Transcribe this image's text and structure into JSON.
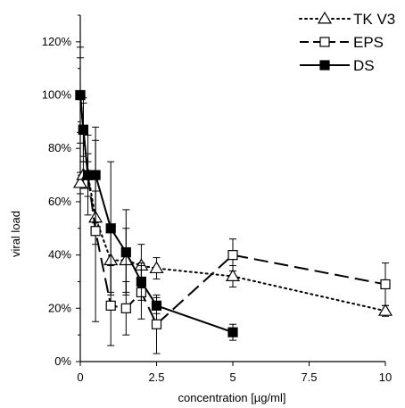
{
  "chart_data": {
    "type": "line",
    "title": "",
    "xlabel": "concentration [µg/ml]",
    "ylabel": "viral load",
    "xlim": [
      0,
      10
    ],
    "ylim": [
      0,
      130
    ],
    "x_ticks": [
      0,
      2.5,
      5,
      7.5,
      10
    ],
    "x_tick_labels": [
      "0",
      "2.5",
      "5",
      "7.5",
      "10"
    ],
    "y_ticks": [
      0,
      20,
      40,
      60,
      80,
      100,
      120
    ],
    "y_tick_labels": [
      "0%",
      "20%",
      "40%",
      "60%",
      "80%",
      "100%",
      "120%"
    ],
    "grid": false,
    "legend_position": "top-right",
    "series": [
      {
        "name": "TK V3",
        "marker": "triangle-open",
        "line": "dotted",
        "x": [
          0,
          0.1,
          0.25,
          0.5,
          1,
          1.5,
          2,
          2.5,
          5,
          10
        ],
        "y": [
          67,
          70,
          70,
          54,
          38,
          38,
          36,
          35,
          32,
          19
        ],
        "err": [
          4,
          5,
          5,
          10,
          12,
          12,
          8,
          4,
          4,
          2
        ]
      },
      {
        "name": "EPS",
        "marker": "square-open",
        "line": "dashed",
        "x": [
          0,
          0.1,
          0.25,
          0.5,
          1,
          1.5,
          2,
          2.5,
          5,
          10
        ],
        "y": [
          100,
          87,
          70,
          49,
          21,
          20,
          26,
          14,
          40,
          29
        ],
        "err": [
          14,
          10,
          8,
          34,
          15,
          10,
          10,
          11,
          6,
          8
        ]
      },
      {
        "name": "DS",
        "marker": "square-filled",
        "line": "solid",
        "x": [
          0,
          0.1,
          0.25,
          0.5,
          1,
          1.5,
          2,
          2.5,
          5
        ],
        "y": [
          100,
          87,
          70,
          70,
          50,
          41,
          30,
          21,
          11
        ],
        "err": [
          18,
          12,
          15,
          18,
          25,
          16,
          7,
          3,
          3
        ]
      }
    ]
  }
}
